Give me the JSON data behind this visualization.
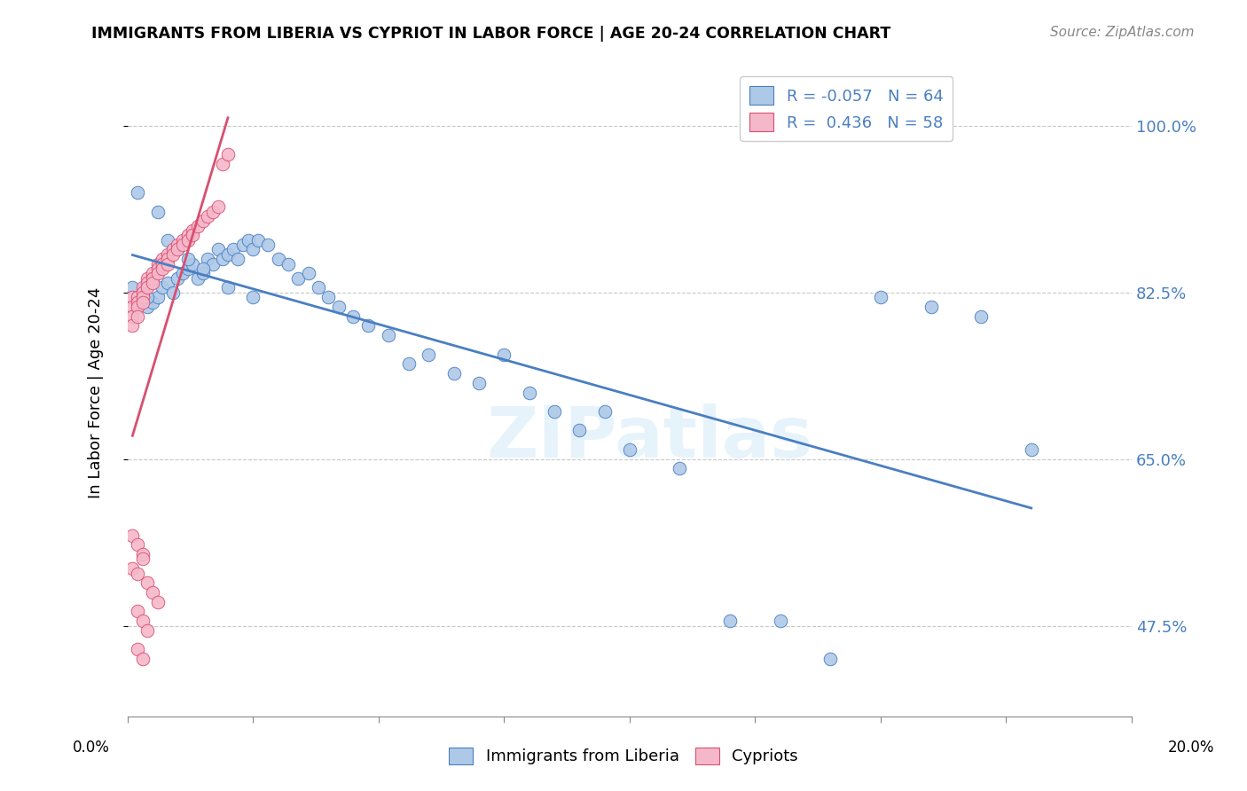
{
  "title": "IMMIGRANTS FROM LIBERIA VS CYPRIOT IN LABOR FORCE | AGE 20-24 CORRELATION CHART",
  "source": "Source: ZipAtlas.com",
  "ylabel": "In Labor Force | Age 20-24",
  "ytick_labels": [
    "100.0%",
    "82.5%",
    "65.0%",
    "47.5%"
  ],
  "ytick_values": [
    1.0,
    0.825,
    0.65,
    0.475
  ],
  "xlim": [
    0.0,
    0.2
  ],
  "ylim": [
    0.38,
    1.06
  ],
  "legend_blue_R": "-0.057",
  "legend_blue_N": "64",
  "legend_pink_R": "0.436",
  "legend_pink_N": "58",
  "blue_color": "#aec9e8",
  "pink_color": "#f5b8cb",
  "trendline_blue": "#4a7fc1",
  "trendline_pink": "#d94f70",
  "blue_scatter_x": [
    0.001,
    0.002,
    0.003,
    0.004,
    0.005,
    0.006,
    0.007,
    0.008,
    0.009,
    0.01,
    0.011,
    0.012,
    0.013,
    0.014,
    0.015,
    0.016,
    0.017,
    0.018,
    0.019,
    0.02,
    0.021,
    0.022,
    0.023,
    0.024,
    0.025,
    0.026,
    0.028,
    0.03,
    0.032,
    0.034,
    0.036,
    0.038,
    0.04,
    0.042,
    0.045,
    0.048,
    0.052,
    0.056,
    0.06,
    0.065,
    0.07,
    0.075,
    0.08,
    0.085,
    0.09,
    0.095,
    0.1,
    0.11,
    0.12,
    0.13,
    0.14,
    0.15,
    0.16,
    0.17,
    0.18,
    0.002,
    0.004,
    0.006,
    0.008,
    0.01,
    0.012,
    0.015,
    0.02,
    0.025
  ],
  "blue_scatter_y": [
    0.83,
    0.82,
    0.825,
    0.81,
    0.815,
    0.82,
    0.83,
    0.835,
    0.825,
    0.84,
    0.845,
    0.85,
    0.855,
    0.84,
    0.845,
    0.86,
    0.855,
    0.87,
    0.86,
    0.865,
    0.87,
    0.86,
    0.875,
    0.88,
    0.87,
    0.88,
    0.875,
    0.86,
    0.855,
    0.84,
    0.845,
    0.83,
    0.82,
    0.81,
    0.8,
    0.79,
    0.78,
    0.75,
    0.76,
    0.74,
    0.73,
    0.76,
    0.72,
    0.7,
    0.68,
    0.7,
    0.66,
    0.64,
    0.48,
    0.48,
    0.44,
    0.82,
    0.81,
    0.8,
    0.66,
    0.93,
    0.82,
    0.91,
    0.88,
    0.87,
    0.86,
    0.85,
    0.83,
    0.82
  ],
  "pink_scatter_x": [
    0.001,
    0.001,
    0.001,
    0.001,
    0.002,
    0.002,
    0.002,
    0.002,
    0.003,
    0.003,
    0.003,
    0.003,
    0.004,
    0.004,
    0.004,
    0.005,
    0.005,
    0.005,
    0.006,
    0.006,
    0.006,
    0.007,
    0.007,
    0.007,
    0.008,
    0.008,
    0.008,
    0.009,
    0.009,
    0.01,
    0.01,
    0.011,
    0.011,
    0.012,
    0.012,
    0.013,
    0.013,
    0.014,
    0.015,
    0.016,
    0.017,
    0.018,
    0.019,
    0.02,
    0.001,
    0.002,
    0.003,
    0.001,
    0.002,
    0.003,
    0.004,
    0.005,
    0.006,
    0.002,
    0.003,
    0.004,
    0.002,
    0.003
  ],
  "pink_scatter_y": [
    0.82,
    0.81,
    0.8,
    0.79,
    0.82,
    0.815,
    0.81,
    0.8,
    0.83,
    0.825,
    0.82,
    0.815,
    0.84,
    0.835,
    0.83,
    0.845,
    0.84,
    0.835,
    0.855,
    0.85,
    0.845,
    0.86,
    0.855,
    0.85,
    0.865,
    0.86,
    0.855,
    0.87,
    0.865,
    0.875,
    0.87,
    0.88,
    0.875,
    0.885,
    0.88,
    0.89,
    0.885,
    0.895,
    0.9,
    0.905,
    0.91,
    0.915,
    0.96,
    0.97,
    0.57,
    0.56,
    0.55,
    0.535,
    0.53,
    0.545,
    0.52,
    0.51,
    0.5,
    0.49,
    0.48,
    0.47,
    0.45,
    0.44
  ],
  "watermark": "ZIPatlas",
  "background_color": "#ffffff"
}
